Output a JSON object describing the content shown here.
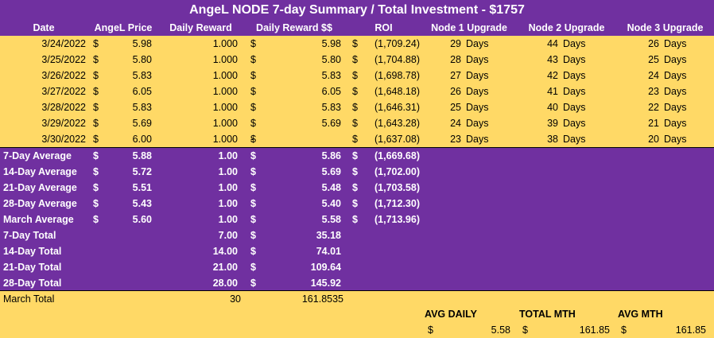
{
  "title": "AngeL NODE 7-day Summary / Total Investment - $1757",
  "headers": {
    "date": "Date",
    "price": "AngeL Price",
    "reward": "Daily Reward",
    "reward_usd": "Daily Reward $$",
    "roi": "ROI",
    "node1": "Node 1 Upgrade",
    "node2": "Node 2 Upgrade",
    "node3": "Node 3 Upgrade"
  },
  "currency": "$",
  "days_unit": "Days",
  "daily_rows": [
    {
      "date": "3/24/2022",
      "price": "5.98",
      "reward": "1.000",
      "reward_usd": "5.98",
      "roi": "(1,709.24)",
      "n1": "29",
      "n2": "44",
      "n3": "26"
    },
    {
      "date": "3/25/2022",
      "price": "5.80",
      "reward": "1.000",
      "reward_usd": "5.80",
      "roi": "(1,704.88)",
      "n1": "28",
      "n2": "43",
      "n3": "25"
    },
    {
      "date": "3/26/2022",
      "price": "5.83",
      "reward": "1.000",
      "reward_usd": "5.83",
      "roi": "(1,698.78)",
      "n1": "27",
      "n2": "42",
      "n3": "24"
    },
    {
      "date": "3/27/2022",
      "price": "6.05",
      "reward": "1.000",
      "reward_usd": "6.05",
      "roi": "(1,648.18)",
      "n1": "26",
      "n2": "41",
      "n3": "23"
    },
    {
      "date": "3/28/2022",
      "price": "5.83",
      "reward": "1.000",
      "reward_usd": "5.83",
      "roi": "(1,646.31)",
      "n1": "25",
      "n2": "40",
      "n3": "22"
    },
    {
      "date": "3/29/2022",
      "price": "5.69",
      "reward": "1.000",
      "reward_usd": "5.69",
      "roi": "(1,643.28)",
      "n1": "24",
      "n2": "39",
      "n3": "21"
    },
    {
      "date": "3/30/2022",
      "price": "6.00",
      "reward": "1.000",
      "reward_usd": "-",
      "roi": "(1,637.08)",
      "n1": "23",
      "n2": "38",
      "n3": "20"
    }
  ],
  "average_rows": [
    {
      "label": "7-Day Average",
      "price": "5.88",
      "reward": "1.00",
      "reward_usd": "5.86",
      "roi": "(1,669.68)"
    },
    {
      "label": "14-Day Average",
      "price": "5.72",
      "reward": "1.00",
      "reward_usd": "5.69",
      "roi": "(1,702.00)"
    },
    {
      "label": "21-Day Average",
      "price": "5.51",
      "reward": "1.00",
      "reward_usd": "5.48",
      "roi": "(1,703.58)"
    },
    {
      "label": "28-Day Average",
      "price": "5.43",
      "reward": "1.00",
      "reward_usd": "5.40",
      "roi": "(1,712.30)"
    },
    {
      "label": "March Average",
      "price": "5.60",
      "reward": "1.00",
      "reward_usd": "5.58",
      "roi": "(1,713.96)"
    }
  ],
  "total_rows": [
    {
      "label": "7-Day Total",
      "reward": "7.00",
      "reward_usd": "35.18"
    },
    {
      "label": "14-Day Total",
      "reward": "14.00",
      "reward_usd": "74.01"
    },
    {
      "label": "21-Day Total",
      "reward": "21.00",
      "reward_usd": "109.64"
    },
    {
      "label": "28-Day Total",
      "reward": "28.00",
      "reward_usd": "145.92"
    }
  ],
  "march_total": {
    "label": "March Total",
    "reward": "30",
    "reward_usd": "161.8535"
  },
  "summary": {
    "avg_daily_label": "AVG DAILY",
    "avg_daily_value": "5.58",
    "total_mth_label": "TOTAL MTH",
    "total_mth_value": "161.85",
    "avg_mth_label": "AVG MTH",
    "avg_mth_value": "161.85"
  },
  "colors": {
    "purple": "#7030a0",
    "yellow": "#ffd966"
  }
}
